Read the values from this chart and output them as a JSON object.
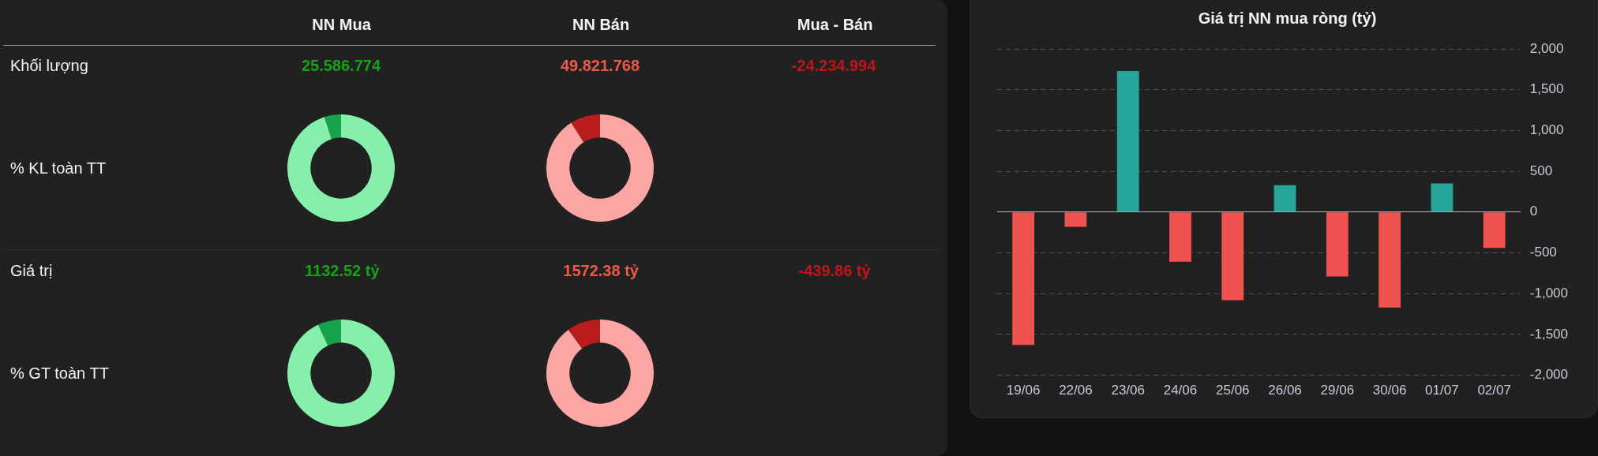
{
  "chart_data": [
    {
      "type": "other",
      "categories": [
        "NN Mua",
        "NN Bán",
        "Mua - Bán"
      ],
      "y_categories": [
        "Khối lượng",
        "% KL toàn TT",
        "Giá trị",
        "% GT toàn TT"
      ],
      "cell_labels": [
        [
          "25.586.774",
          "49.821.768",
          "-24.234.994"
        ],
        [
          null,
          null,
          null
        ],
        [
          "1132.52 tỷ",
          "1572.38 tỷ",
          "-439.86 tỷ"
        ],
        [
          null,
          null,
          null
        ]
      ],
      "colors": [
        "#16a316",
        "#ef5a47",
        "#c0161a"
      ]
    },
    {
      "type": "donut",
      "categories": [
        null,
        null
      ],
      "values": [
        95,
        5
      ],
      "colors": [
        "#86efac",
        "#16a34a"
      ]
    },
    {
      "type": "donut",
      "categories": [
        null,
        null
      ],
      "values": [
        91,
        9
      ],
      "colors": [
        "#fca5a5",
        "#b91c1c"
      ]
    },
    {
      "type": "donut",
      "categories": [
        null,
        null
      ],
      "values": [
        93,
        7
      ],
      "colors": [
        "#86efac",
        "#16a34a"
      ]
    },
    {
      "type": "donut",
      "categories": [
        null,
        null
      ],
      "values": [
        90,
        10
      ],
      "colors": [
        "#fca5a5",
        "#b91c1c"
      ]
    },
    {
      "type": "bar",
      "title": "Giá trị NN mua ròng (tỷ)",
      "categories": [
        "19/06",
        "22/06",
        "23/06",
        "24/06",
        "25/06",
        "26/06",
        "29/06",
        "30/06",
        "01/07",
        "02/07"
      ],
      "values": [
        -1630,
        -180,
        1730,
        -610,
        -1080,
        330,
        -790,
        -1170,
        350,
        -440
      ],
      "colors": [
        "#ef5350",
        "#ef5350",
        "#26a69a",
        "#ef5350",
        "#ef5350",
        "#26a69a",
        "#ef5350",
        "#ef5350",
        "#26a69a",
        "#ef5350"
      ],
      "ylim": [
        -2000,
        2000
      ],
      "yticks": [
        {
          "value": -2000,
          "label": "-2,000"
        },
        {
          "value": -1500,
          "label": "-1,500"
        },
        {
          "value": -1000,
          "label": "-1,000"
        },
        -500,
        0,
        500,
        {
          "value": 1000,
          "label": "1,000"
        },
        {
          "value": 1500,
          "label": "1,500"
        },
        {
          "value": 2000,
          "label": "2,000"
        }
      ],
      "grid": "y"
    }
  ]
}
